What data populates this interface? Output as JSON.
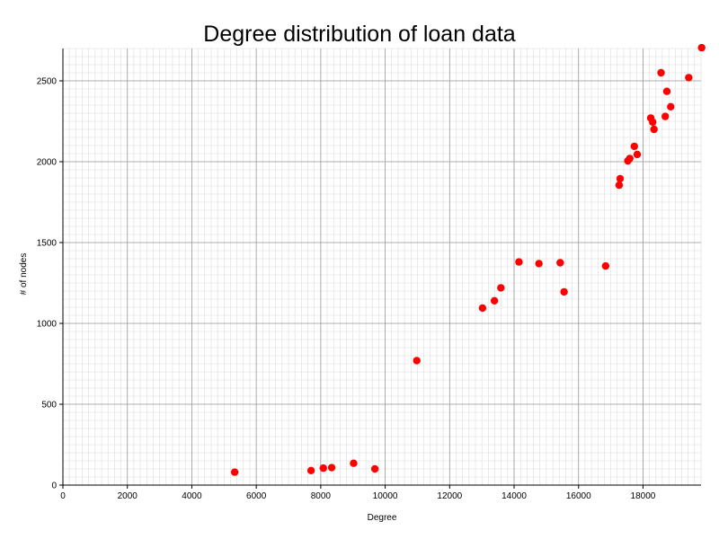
{
  "chart_data": {
    "type": "scatter",
    "title": "Degree distribution of loan data",
    "xlabel": "Degree",
    "ylabel": "# of nodes",
    "xlim": [
      0,
      19800
    ],
    "ylim": [
      0,
      2700
    ],
    "x_ticks": [
      0,
      2000,
      4000,
      6000,
      8000,
      10000,
      12000,
      14000,
      16000,
      18000
    ],
    "y_ticks": [
      0,
      500,
      1000,
      1500,
      2000,
      2500
    ],
    "x_tick_labels": [
      "0",
      "2000",
      "4000",
      "6000",
      "8000",
      "10000",
      "12000",
      "14000",
      "16000",
      "18000"
    ],
    "y_tick_labels": [
      "0",
      "500",
      "1000",
      "1500",
      "2000",
      "2500"
    ],
    "grid": true,
    "marker_color": "#ff0000",
    "points": [
      {
        "x": 5330,
        "y": 80
      },
      {
        "x": 7700,
        "y": 90
      },
      {
        "x": 8080,
        "y": 105
      },
      {
        "x": 8340,
        "y": 108
      },
      {
        "x": 9020,
        "y": 135
      },
      {
        "x": 9680,
        "y": 100
      },
      {
        "x": 10980,
        "y": 770
      },
      {
        "x": 13020,
        "y": 1095
      },
      {
        "x": 13390,
        "y": 1140
      },
      {
        "x": 13590,
        "y": 1220
      },
      {
        "x": 14150,
        "y": 1380
      },
      {
        "x": 14770,
        "y": 1370
      },
      {
        "x": 15430,
        "y": 1375
      },
      {
        "x": 15550,
        "y": 1195
      },
      {
        "x": 16840,
        "y": 1355
      },
      {
        "x": 17260,
        "y": 1855
      },
      {
        "x": 17290,
        "y": 1895
      },
      {
        "x": 17530,
        "y": 2005
      },
      {
        "x": 17590,
        "y": 2020
      },
      {
        "x": 17730,
        "y": 2095
      },
      {
        "x": 17820,
        "y": 2045
      },
      {
        "x": 18240,
        "y": 2270
      },
      {
        "x": 18300,
        "y": 2245
      },
      {
        "x": 18340,
        "y": 2200
      },
      {
        "x": 18560,
        "y": 2550
      },
      {
        "x": 18690,
        "y": 2280
      },
      {
        "x": 18740,
        "y": 2435
      },
      {
        "x": 18860,
        "y": 2340
      },
      {
        "x": 19420,
        "y": 2520
      },
      {
        "x": 19820,
        "y": 2705
      }
    ]
  }
}
